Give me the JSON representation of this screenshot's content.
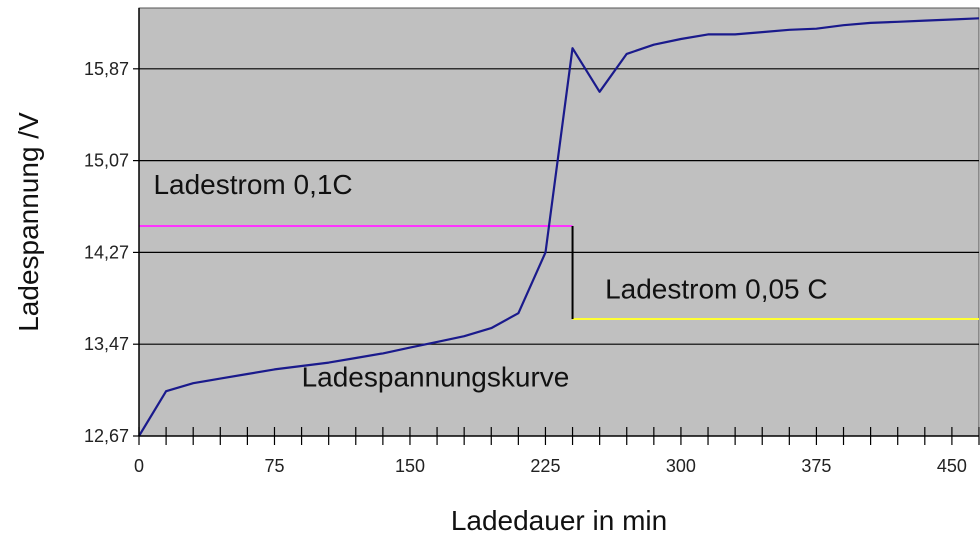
{
  "chart_data": {
    "type": "line",
    "title": "",
    "xlabel": "Ladedauer in min",
    "ylabel": "Ladespannung  /V",
    "xlim": [
      0,
      465
    ],
    "ylim": [
      12.67,
      16.4
    ],
    "x_ticks": [
      0,
      75,
      150,
      225,
      300,
      375,
      450
    ],
    "x_tick_labels": [
      "0",
      "75",
      "150",
      "225",
      "300",
      "375",
      "450"
    ],
    "x_minor_step": 15,
    "y_ticks": [
      12.67,
      13.47,
      14.27,
      15.07,
      15.87
    ],
    "y_tick_labels": [
      "12,67",
      "13,47",
      "14,27",
      "15,07",
      "15,87"
    ],
    "grid": "horizontal",
    "background": "#c0c0c0",
    "series": [
      {
        "color": "#1a1a8c",
        "x": [
          0,
          15,
          30,
          45,
          60,
          75,
          90,
          105,
          120,
          135,
          150,
          165,
          180,
          195,
          210,
          225,
          240,
          255,
          270,
          285,
          300,
          315,
          330,
          345,
          360,
          375,
          390,
          405,
          420,
          435,
          450,
          465
        ],
        "y": [
          12.67,
          13.06,
          13.13,
          13.17,
          13.21,
          13.25,
          13.28,
          13.31,
          13.35,
          13.39,
          13.44,
          13.49,
          13.54,
          13.61,
          13.74,
          14.27,
          16.05,
          15.67,
          16.0,
          16.08,
          16.13,
          16.17,
          16.17,
          16.19,
          16.21,
          16.22,
          16.25,
          16.27,
          16.28,
          16.29,
          16.3,
          16.31
        ]
      }
    ],
    "annotations": [
      {
        "text": "Ladestrom 0,1C",
        "x": 8,
        "y": 14.78
      },
      {
        "text": "Ladestrom 0,05 C",
        "x": 258,
        "y": 13.87
      },
      {
        "text": "Ladespannungskurve",
        "x": 90,
        "y": 13.1
      }
    ],
    "current_steps": [
      {
        "x0": 0,
        "x1": 240,
        "y": 14.5,
        "color": "#ff33ff"
      },
      {
        "x0": 240,
        "x1": 465,
        "y": 13.69,
        "color": "#ffff33"
      }
    ],
    "step_connector": {
      "x": 240,
      "y0": 14.5,
      "y1": 13.69,
      "color": "#000000"
    }
  }
}
